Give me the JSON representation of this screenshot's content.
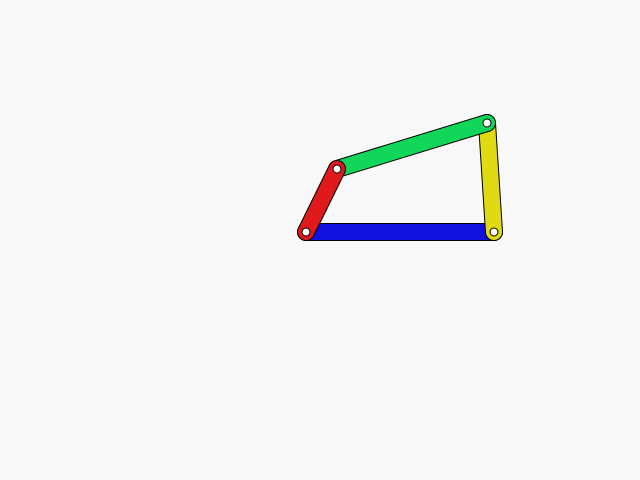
{
  "background_color": "#f8f8f8",
  "links": [
    {
      "id": "ground",
      "name": "ground-link",
      "color": "#1010e0"
    },
    {
      "id": "crank",
      "name": "crank-link",
      "color": "#e01a1a"
    },
    {
      "id": "coupler",
      "name": "coupler-link",
      "color": "#12d65a"
    },
    {
      "id": "rocker",
      "name": "rocker-link",
      "color": "#e0da12"
    }
  ],
  "joint_color": "#ffffff",
  "outline_color": "#000000"
}
